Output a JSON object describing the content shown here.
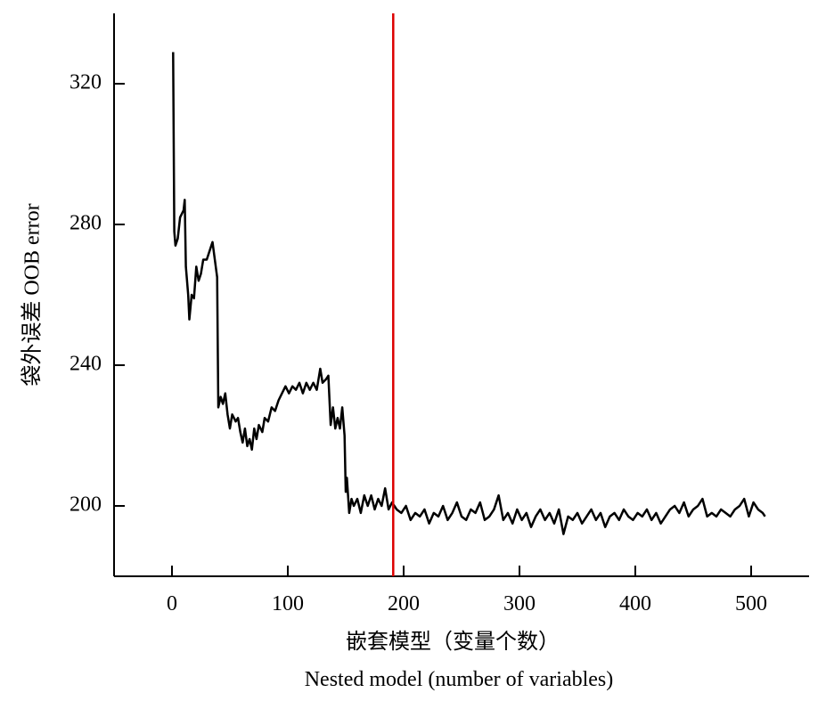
{
  "chart_data": {
    "type": "line",
    "ylabel": "袋外误差 OOB error",
    "xlabel": "嵌套模型（变量个数）",
    "xlabel2": "Nested model (number of variables)",
    "x": [
      1,
      2,
      3,
      5,
      7,
      10,
      11,
      12,
      14,
      15,
      17,
      19,
      21,
      23,
      25,
      27,
      30,
      32,
      34,
      35,
      37,
      39,
      40,
      42,
      44,
      46,
      48,
      50,
      52,
      55,
      57,
      59,
      61,
      63,
      65,
      67,
      69,
      71,
      73,
      75,
      78,
      80,
      83,
      86,
      89,
      92,
      95,
      98,
      101,
      104,
      107,
      110,
      113,
      116,
      119,
      122,
      125,
      128,
      130,
      133,
      135,
      137,
      139,
      141,
      143,
      145,
      147,
      149,
      150,
      151,
      153,
      155,
      157,
      160,
      163,
      166,
      169,
      172,
      175,
      178,
      181,
      184,
      187,
      190,
      194,
      198,
      202,
      206,
      210,
      214,
      218,
      222,
      226,
      230,
      234,
      238,
      242,
      246,
      250,
      254,
      258,
      262,
      266,
      270,
      274,
      278,
      282,
      286,
      290,
      294,
      298,
      302,
      306,
      310,
      314,
      318,
      322,
      326,
      330,
      334,
      338,
      342,
      346,
      350,
      354,
      358,
      362,
      366,
      370,
      374,
      378,
      382,
      386,
      390,
      394,
      398,
      402,
      406,
      410,
      414,
      418,
      422,
      426,
      430,
      434,
      438,
      442,
      446,
      450,
      454,
      458,
      462,
      466,
      470,
      474,
      478,
      482,
      486,
      490,
      494,
      498,
      502,
      506,
      510,
      512
    ],
    "series": [
      {
        "name": "OOB error",
        "color": "#000000",
        "values": [
          329,
          278,
          274,
          276,
          282,
          284,
          287,
          268,
          260,
          253,
          260,
          259,
          268,
          264,
          266,
          270,
          270,
          272,
          274,
          275,
          270,
          265,
          228,
          231,
          229,
          232,
          226,
          222,
          226,
          224,
          225,
          221,
          218,
          222,
          217,
          219,
          216,
          222,
          219,
          223,
          221,
          225,
          224,
          228,
          227,
          230,
          232,
          234,
          232,
          234,
          233,
          235,
          232,
          235,
          233,
          235,
          233,
          239,
          235,
          236,
          237,
          223,
          228,
          222,
          225,
          222,
          228,
          220,
          204,
          208,
          198,
          202,
          200,
          202,
          198,
          203,
          200,
          203,
          199,
          202,
          200,
          205,
          199,
          201,
          199,
          198,
          200,
          196,
          198,
          197,
          199,
          195,
          198,
          197,
          200,
          196,
          198,
          201,
          197,
          196,
          199,
          198,
          201,
          196,
          197,
          199,
          203,
          196,
          198,
          195,
          199,
          196,
          198,
          194,
          197,
          199,
          196,
          198,
          195,
          199,
          192,
          197,
          196,
          198,
          195,
          197,
          199,
          196,
          198,
          194,
          197,
          198,
          196,
          199,
          197,
          196,
          198,
          197,
          199,
          196,
          198,
          195,
          197,
          199,
          200,
          198,
          201,
          197,
          199,
          200,
          202,
          197,
          198,
          197,
          199,
          198,
          197,
          199,
          200,
          202,
          197,
          201,
          199,
          198,
          197
        ]
      }
    ],
    "vline": {
      "x": 191,
      "color": "#dd0000"
    },
    "xlim": [
      -50,
      550
    ],
    "xticks": [
      0,
      100,
      200,
      300,
      400,
      500
    ],
    "ylim": [
      180,
      340
    ],
    "yticks": [
      200,
      240,
      280,
      320
    ]
  }
}
